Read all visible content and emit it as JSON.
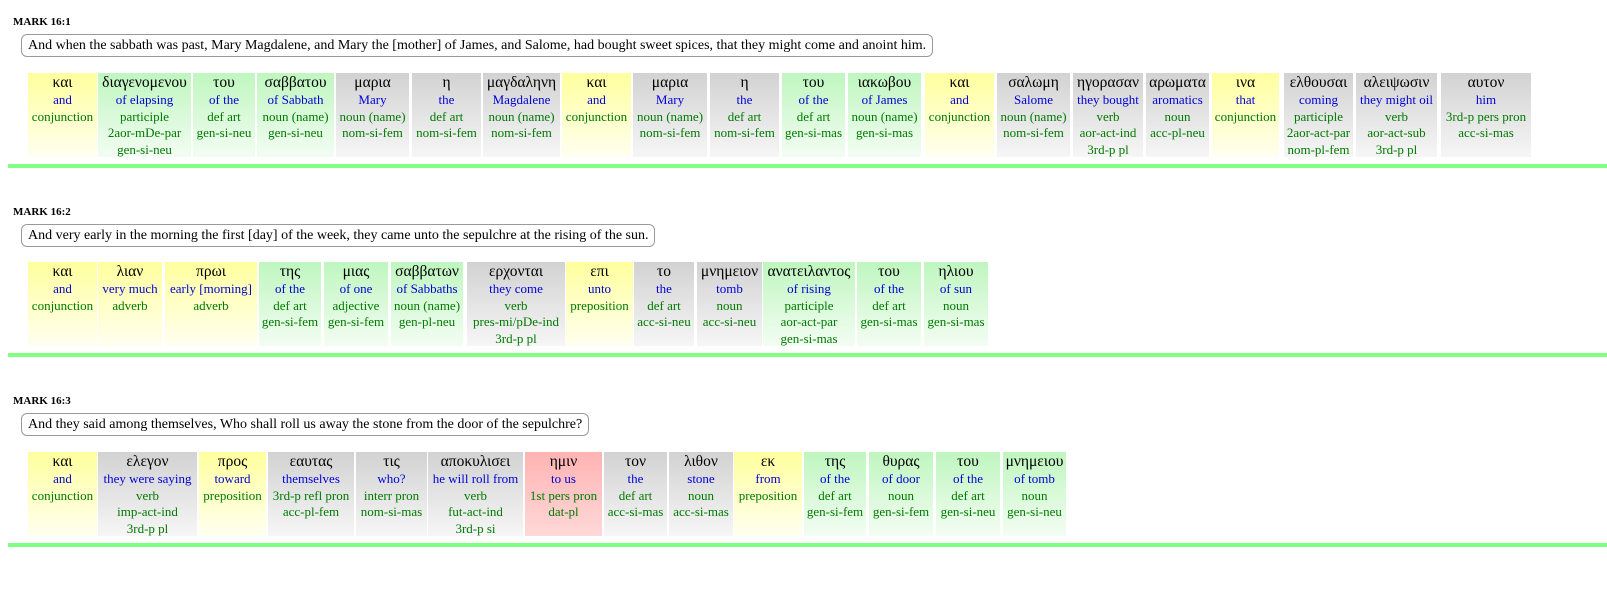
{
  "verses": [
    {
      "ref": "MARK 16:1",
      "english": "And when the sabbath was past, Mary Magdalene, and Mary the [mother] of James, and Salome, had bought sweet spices, that they might come and anoint him.",
      "words": [
        {
          "greek": "και",
          "gloss": "and",
          "parse": [
            "conjunction"
          ],
          "color": "yellow"
        },
        {
          "greek": "διαγενομενου",
          "gloss": "of elapsing",
          "parse": [
            "participle",
            "2aor-mDe-par",
            "gen-si-neu"
          ],
          "color": "green"
        },
        {
          "greek": "του",
          "gloss": "of the",
          "parse": [
            "def art",
            "gen-si-neu"
          ],
          "color": "green"
        },
        {
          "greek": "σαββατου",
          "gloss": "of Sabbath",
          "parse": [
            "noun (name)",
            "gen-si-neu"
          ],
          "color": "green"
        },
        {
          "greek": "μαρια",
          "gloss": "Mary",
          "parse": [
            "noun (name)",
            "nom-si-fem"
          ],
          "color": "gray"
        },
        {
          "greek": "η",
          "gloss": "the",
          "parse": [
            "def art",
            "nom-si-fem"
          ],
          "color": "gray"
        },
        {
          "greek": "μαγδαληνη",
          "gloss": "Magdalene",
          "parse": [
            "noun (name)",
            "nom-si-fem"
          ],
          "color": "gray"
        },
        {
          "greek": "και",
          "gloss": "and",
          "parse": [
            "conjunction"
          ],
          "color": "yellow"
        },
        {
          "greek": "μαρια",
          "gloss": "Mary",
          "parse": [
            "noun (name)",
            "nom-si-fem"
          ],
          "color": "gray"
        },
        {
          "greek": "η",
          "gloss": "the",
          "parse": [
            "def art",
            "nom-si-fem"
          ],
          "color": "gray"
        },
        {
          "greek": "του",
          "gloss": "of the",
          "parse": [
            "def art",
            "gen-si-mas"
          ],
          "color": "green"
        },
        {
          "greek": "ιακωβου",
          "gloss": "of James",
          "parse": [
            "noun (name)",
            "gen-si-mas"
          ],
          "color": "green"
        },
        {
          "greek": "και",
          "gloss": "and",
          "parse": [
            "conjunction"
          ],
          "color": "yellow"
        },
        {
          "greek": "σαλωμη",
          "gloss": "Salome",
          "parse": [
            "noun (name)",
            "nom-si-fem"
          ],
          "color": "gray"
        },
        {
          "greek": "ηγορασαν",
          "gloss": "they bought",
          "parse": [
            "verb",
            "aor-act-ind",
            "3rd-p pl"
          ],
          "color": "gray"
        },
        {
          "greek": "αρωματα",
          "gloss": "aromatics",
          "parse": [
            "noun",
            "acc-pl-neu"
          ],
          "color": "gray"
        },
        {
          "greek": "ινα",
          "gloss": "that",
          "parse": [
            "conjunction"
          ],
          "color": "yellow"
        },
        {
          "greek": "ελθουσαι",
          "gloss": "coming",
          "parse": [
            "participle",
            "2aor-act-par",
            "nom-pl-fem"
          ],
          "color": "gray"
        },
        {
          "greek": "αλειψωσιν",
          "gloss": "they might oil",
          "parse": [
            "verb",
            "aor-act-sub",
            "3rd-p pl"
          ],
          "color": "gray"
        },
        {
          "greek": "αυτον",
          "gloss": "him",
          "parse": [
            "3rd-p pers pron",
            "acc-si-mas"
          ],
          "color": "gray"
        }
      ]
    },
    {
      "ref": "MARK 16:2",
      "english": "And very early in the morning the first [day] of the week, they came unto the sepulchre at the rising of the sun.",
      "words": [
        {
          "greek": "και",
          "gloss": "and",
          "parse": [
            "conjunction"
          ],
          "color": "yellow"
        },
        {
          "greek": "λιαν",
          "gloss": "very much",
          "parse": [
            "adverb"
          ],
          "color": "yellow"
        },
        {
          "greek": "πρωι",
          "gloss": "early [morning]",
          "parse": [
            "adverb"
          ],
          "color": "yellow"
        },
        {
          "greek": "της",
          "gloss": "of the",
          "parse": [
            "def art",
            "gen-si-fem"
          ],
          "color": "green"
        },
        {
          "greek": "μιας",
          "gloss": "of one",
          "parse": [
            "adjective",
            "gen-si-fem"
          ],
          "color": "green"
        },
        {
          "greek": "σαββατων",
          "gloss": "of Sabbaths",
          "parse": [
            "noun (name)",
            "gen-pl-neu"
          ],
          "color": "green"
        },
        {
          "greek": "ερχονται",
          "gloss": "they come",
          "parse": [
            "verb",
            "pres-mi/pDe-ind",
            "3rd-p pl"
          ],
          "color": "gray"
        },
        {
          "greek": "επι",
          "gloss": "unto",
          "parse": [
            "preposition"
          ],
          "color": "yellow"
        },
        {
          "greek": "το",
          "gloss": "the",
          "parse": [
            "def art",
            "acc-si-neu"
          ],
          "color": "gray"
        },
        {
          "greek": "μνημειον",
          "gloss": "tomb",
          "parse": [
            "noun",
            "acc-si-neu"
          ],
          "color": "gray"
        },
        {
          "greek": "ανατειλαντος",
          "gloss": "of rising",
          "parse": [
            "participle",
            "aor-act-par",
            "gen-si-mas"
          ],
          "color": "green"
        },
        {
          "greek": "του",
          "gloss": "of the",
          "parse": [
            "def art",
            "gen-si-mas"
          ],
          "color": "green"
        },
        {
          "greek": "ηλιου",
          "gloss": "of sun",
          "parse": [
            "noun",
            "gen-si-mas"
          ],
          "color": "green"
        }
      ]
    },
    {
      "ref": "MARK 16:3",
      "english": "And they said among themselves, Who shall roll us away the stone from the door of the sepulchre?",
      "words": [
        {
          "greek": "και",
          "gloss": "and",
          "parse": [
            "conjunction"
          ],
          "color": "yellow"
        },
        {
          "greek": "ελεγον",
          "gloss": "they were saying",
          "parse": [
            "verb",
            "imp-act-ind",
            "3rd-p pl"
          ],
          "color": "gray"
        },
        {
          "greek": "προς",
          "gloss": "toward",
          "parse": [
            "preposition"
          ],
          "color": "yellow"
        },
        {
          "greek": "εαυτας",
          "gloss": "themselves",
          "parse": [
            "3rd-p refl pron",
            "acc-pl-fem"
          ],
          "color": "gray"
        },
        {
          "greek": "τις",
          "gloss": "who?",
          "parse": [
            "interr pron",
            "nom-si-mas"
          ],
          "color": "gray"
        },
        {
          "greek": "αποκυλισει",
          "gloss": "he will roll from",
          "parse": [
            "verb",
            "fut-act-ind",
            "3rd-p si"
          ],
          "color": "gray"
        },
        {
          "greek": "ημιν",
          "gloss": "to us",
          "parse": [
            "1st pers pron",
            "dat-pl"
          ],
          "color": "red"
        },
        {
          "greek": "τον",
          "gloss": "the",
          "parse": [
            "def art",
            "acc-si-mas"
          ],
          "color": "gray"
        },
        {
          "greek": "λιθον",
          "gloss": "stone",
          "parse": [
            "noun",
            "acc-si-mas"
          ],
          "color": "gray"
        },
        {
          "greek": "εκ",
          "gloss": "from",
          "parse": [
            "preposition"
          ],
          "color": "yellow"
        },
        {
          "greek": "της",
          "gloss": "of the",
          "parse": [
            "def art",
            "gen-si-fem"
          ],
          "color": "green"
        },
        {
          "greek": "θυρας",
          "gloss": "of door",
          "parse": [
            "noun",
            "gen-si-fem"
          ],
          "color": "green"
        },
        {
          "greek": "του",
          "gloss": "of the",
          "parse": [
            "def art",
            "gen-si-neu"
          ],
          "color": "green"
        },
        {
          "greek": "μνημειου",
          "gloss": "of tomb",
          "parse": [
            "noun",
            "gen-si-neu"
          ],
          "color": "green"
        }
      ]
    }
  ],
  "colors": {
    "yellow": "#ffff9e",
    "green": "#bff6bf",
    "gray": "#d2d2d2",
    "red": "#ffb3b3",
    "gloss": "#0000d8",
    "parse": "#007a00",
    "separator": "#80ff80"
  }
}
